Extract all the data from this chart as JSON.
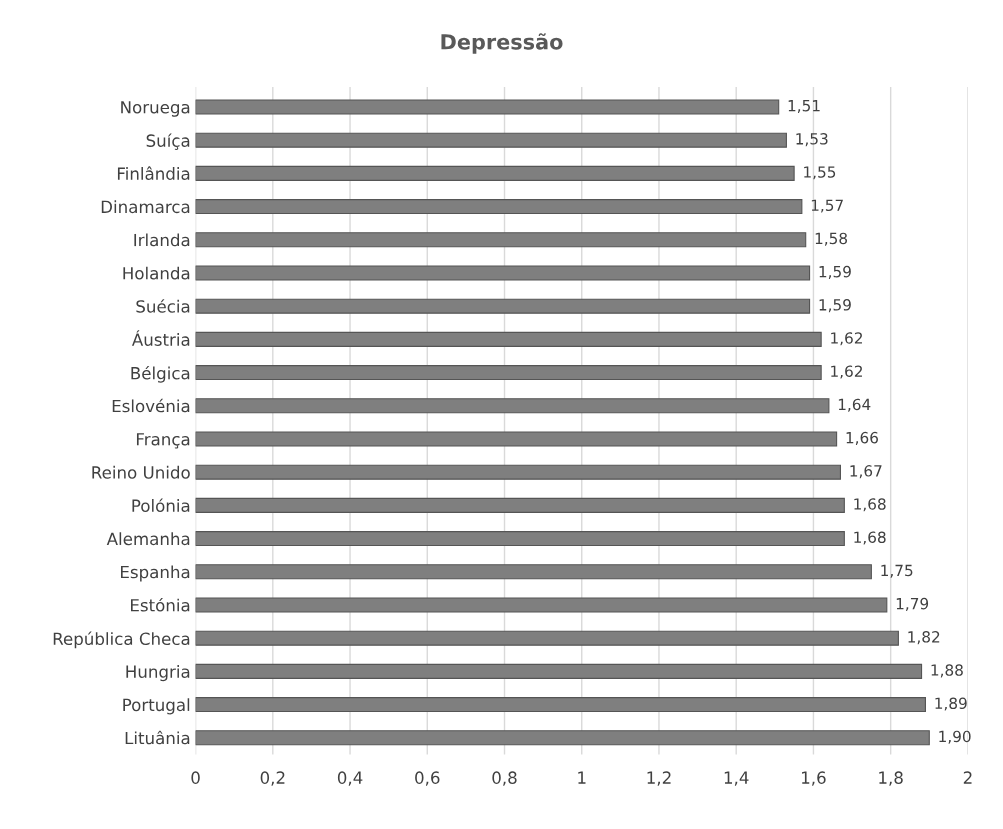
{
  "chart_data": {
    "type": "bar",
    "title": "Depressão",
    "orientation": "horizontal",
    "categories": [
      "Noruega",
      "Suíça",
      "Finlândia",
      "Dinamarca",
      "Irlanda",
      "Holanda",
      "Suécia",
      "Áustria",
      "Bélgica",
      "Eslovénia",
      "França",
      "Reino Unido",
      "Polónia",
      "Alemanha",
      "Espanha",
      "Estónia",
      "República Checa",
      "Hungria",
      "Portugal",
      "Lituânia"
    ],
    "values": [
      1.51,
      1.53,
      1.55,
      1.57,
      1.58,
      1.59,
      1.59,
      1.62,
      1.62,
      1.64,
      1.66,
      1.67,
      1.68,
      1.68,
      1.75,
      1.79,
      1.82,
      1.88,
      1.89,
      1.9
    ],
    "value_labels": [
      "1,51",
      "1,53",
      "1,55",
      "1,57",
      "1,58",
      "1,59",
      "1,59",
      "1,62",
      "1,62",
      "1,64",
      "1,66",
      "1,67",
      "1,68",
      "1,68",
      "1,75",
      "1,79",
      "1,82",
      "1,88",
      "1,89",
      "1,90"
    ],
    "color": "#7f7f7f",
    "xlim": [
      0,
      2
    ],
    "xticks": [
      0,
      {
        "value": 0.2,
        "label": "0,2"
      },
      {
        "value": 0.4,
        "label": "0,4"
      },
      {
        "value": 0.6,
        "label": "0,6"
      },
      {
        "value": 0.8,
        "label": "0,8"
      },
      1,
      {
        "value": 1.2,
        "label": "1,2"
      },
      {
        "value": 1.4,
        "label": "1,4"
      },
      {
        "value": 1.6,
        "label": "1,6"
      },
      {
        "value": 1.8,
        "label": "1,8"
      },
      2
    ],
    "grid": "x"
  }
}
